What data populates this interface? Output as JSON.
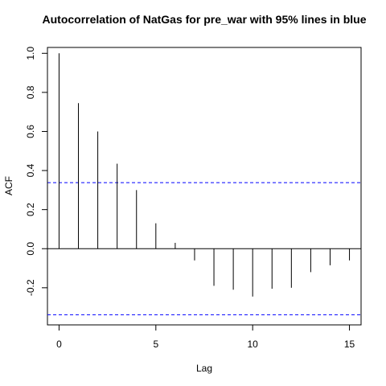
{
  "chart_data": {
    "type": "bar",
    "title": "Autocorrelation of NatGas for pre_war  with 95% lines in blue",
    "xlabel": "Lag",
    "ylabel": "ACF",
    "x_ticks": [
      0,
      5,
      10,
      15
    ],
    "y_ticks": [
      -0.2,
      0.0,
      0.2,
      0.4,
      0.6,
      0.8,
      1.0
    ],
    "xlim": [
      -0.6,
      15.6
    ],
    "ylim": [
      -0.39,
      1.03
    ],
    "x": [
      0,
      1,
      2,
      3,
      4,
      5,
      6,
      7,
      8,
      9,
      10,
      11,
      12,
      13,
      14,
      15
    ],
    "values": [
      1.0,
      0.745,
      0.6,
      0.435,
      0.3,
      0.13,
      0.03,
      -0.06,
      -0.19,
      -0.21,
      -0.245,
      -0.205,
      -0.2,
      -0.12,
      -0.085,
      -0.06
    ],
    "confidence_bounds": [
      0.338,
      -0.338
    ],
    "confidence_color": "#0000ff",
    "bar_color": "#000000",
    "grid": false
  }
}
